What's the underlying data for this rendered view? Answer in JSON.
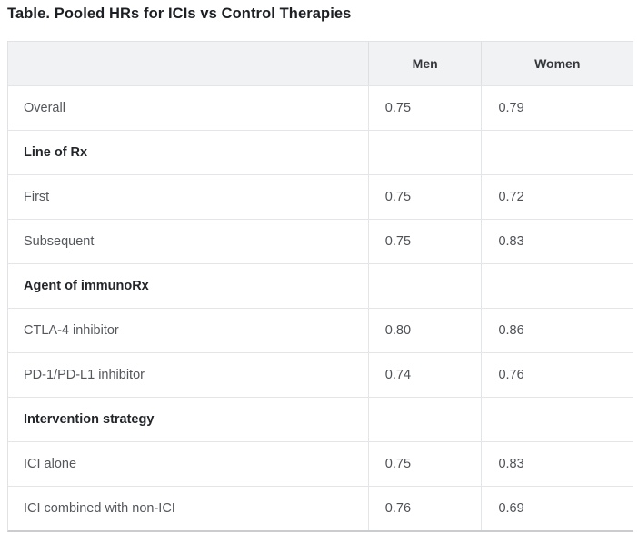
{
  "title": "Table. Pooled HRs for ICIs vs Control Therapies",
  "table": {
    "header": {
      "label": "",
      "men": "Men",
      "women": "Women"
    },
    "rows": [
      {
        "label": "Overall",
        "men": "0.75",
        "women": "0.79",
        "section": false
      },
      {
        "label": "Line of Rx",
        "men": "",
        "women": "",
        "section": true
      },
      {
        "label": "First",
        "men": "0.75",
        "women": "0.72",
        "section": false
      },
      {
        "label": "Subsequent",
        "men": "0.75",
        "women": "0.83",
        "section": false
      },
      {
        "label": "Agent of immunoRx",
        "men": "",
        "women": "",
        "section": true
      },
      {
        "label": "CTLA-4 inhibitor",
        "men": "0.80",
        "women": "0.86",
        "section": false
      },
      {
        "label": "PD-1/PD-L1 inhibitor",
        "men": "0.74",
        "women": "0.76",
        "section": false
      },
      {
        "label": "Intervention strategy",
        "men": "",
        "women": "",
        "section": true
      },
      {
        "label": "ICI alone",
        "men": "0.75",
        "women": "0.83",
        "section": false
      },
      {
        "label": "ICI combined with non-ICI",
        "men": "0.76",
        "women": "0.69",
        "section": false
      }
    ]
  },
  "colors": {
    "title_text": "#1c1f23",
    "header_background": "#f1f2f4",
    "grid_border": "#e3e5e8",
    "bottom_border": "#caccd0",
    "body_text": "#54575c",
    "section_text": "#222529"
  },
  "chart_data": {
    "type": "table",
    "title": "Table. Pooled HRs for ICIs vs Control Therapies",
    "columns": [
      "",
      "Men",
      "Women"
    ],
    "series": [
      {
        "name": "Men",
        "values": [
          0.75,
          null,
          0.75,
          0.75,
          null,
          0.8,
          0.74,
          null,
          0.75,
          0.76
        ]
      },
      {
        "name": "Women",
        "values": [
          0.79,
          null,
          0.72,
          0.83,
          null,
          0.86,
          0.76,
          null,
          0.83,
          0.69
        ]
      }
    ],
    "categories": [
      "Overall",
      "Line of Rx",
      "First",
      "Subsequent",
      "Agent of immunoRx",
      "CTLA-4 inhibitor",
      "PD-1/PD-L1 inhibitor",
      "Intervention strategy",
      "ICI alone",
      "ICI combined with non-ICI"
    ],
    "section_rows": [
      "Line of Rx",
      "Agent of immunoRx",
      "Intervention strategy"
    ],
    "layout": "section header rows are bold with empty value cells; values are pooled hazard ratios"
  }
}
